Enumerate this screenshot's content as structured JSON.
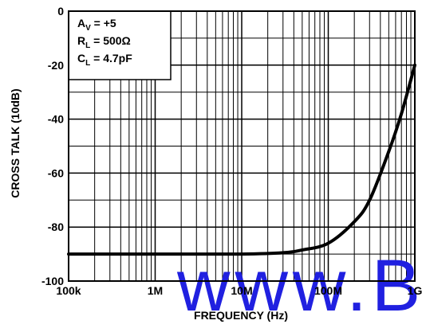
{
  "chart_data": {
    "type": "line",
    "title": "",
    "xlabel": "FREQUENCY (Hz)",
    "ylabel": "CROSS TALK (10dB)",
    "x_scale": "log",
    "xlim": [
      100000,
      1000000000
    ],
    "ylim": [
      -100,
      0
    ],
    "grid": true,
    "x_tick_labels": [
      "100k",
      "1M",
      "10M",
      "100M",
      "1G"
    ],
    "y_tick_labels": [
      "0",
      "-20",
      "-40",
      "-60",
      "-80",
      "-100"
    ],
    "y_ticks": [
      0,
      -20,
      -40,
      -60,
      -80,
      -100
    ],
    "legend_placement": "top-left",
    "annotations": [
      {
        "main": "A",
        "sub": "V",
        "rest": " = +5"
      },
      {
        "main": "R",
        "sub": "L",
        "rest": " = 500Ω"
      },
      {
        "main": "C",
        "sub": "L",
        "rest": " = 4.7pF"
      }
    ],
    "series": [
      {
        "x": [
          100000,
          1000000,
          10000000,
          30000000,
          50000000,
          100000000,
          200000000,
          300000000,
          500000000,
          700000000,
          1000000000
        ],
        "y": [
          -90,
          -90,
          -90,
          -89.5,
          -88.5,
          -86,
          -78,
          -70,
          -52,
          -38,
          -20
        ]
      }
    ],
    "watermark": "www.BDTIC"
  }
}
